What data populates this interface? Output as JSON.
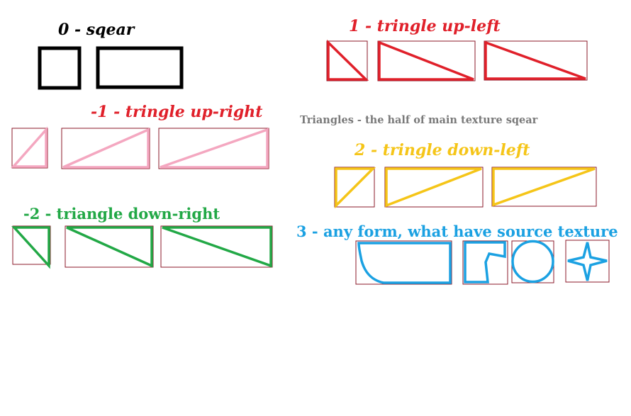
{
  "labels": {
    "square": "0 - sqear",
    "up_left": "1 - tringle up-left",
    "up_right": "-1 - tringle up-right",
    "note": "Triangles - the half of main texture sqear",
    "down_left": "2 - tringle down-left",
    "down_right": "-2 - triangle down-right",
    "any_form": "3 - any form, what have source texture"
  },
  "colors": {
    "square": "#000000",
    "up_left": "#e0202a",
    "up_right": "#f4a7c0",
    "down_left": "#f5c518",
    "down_right": "#22a846",
    "any_form": "#1ba1e2",
    "frame": "#8b1a2a",
    "note": "#7a7a7a"
  }
}
